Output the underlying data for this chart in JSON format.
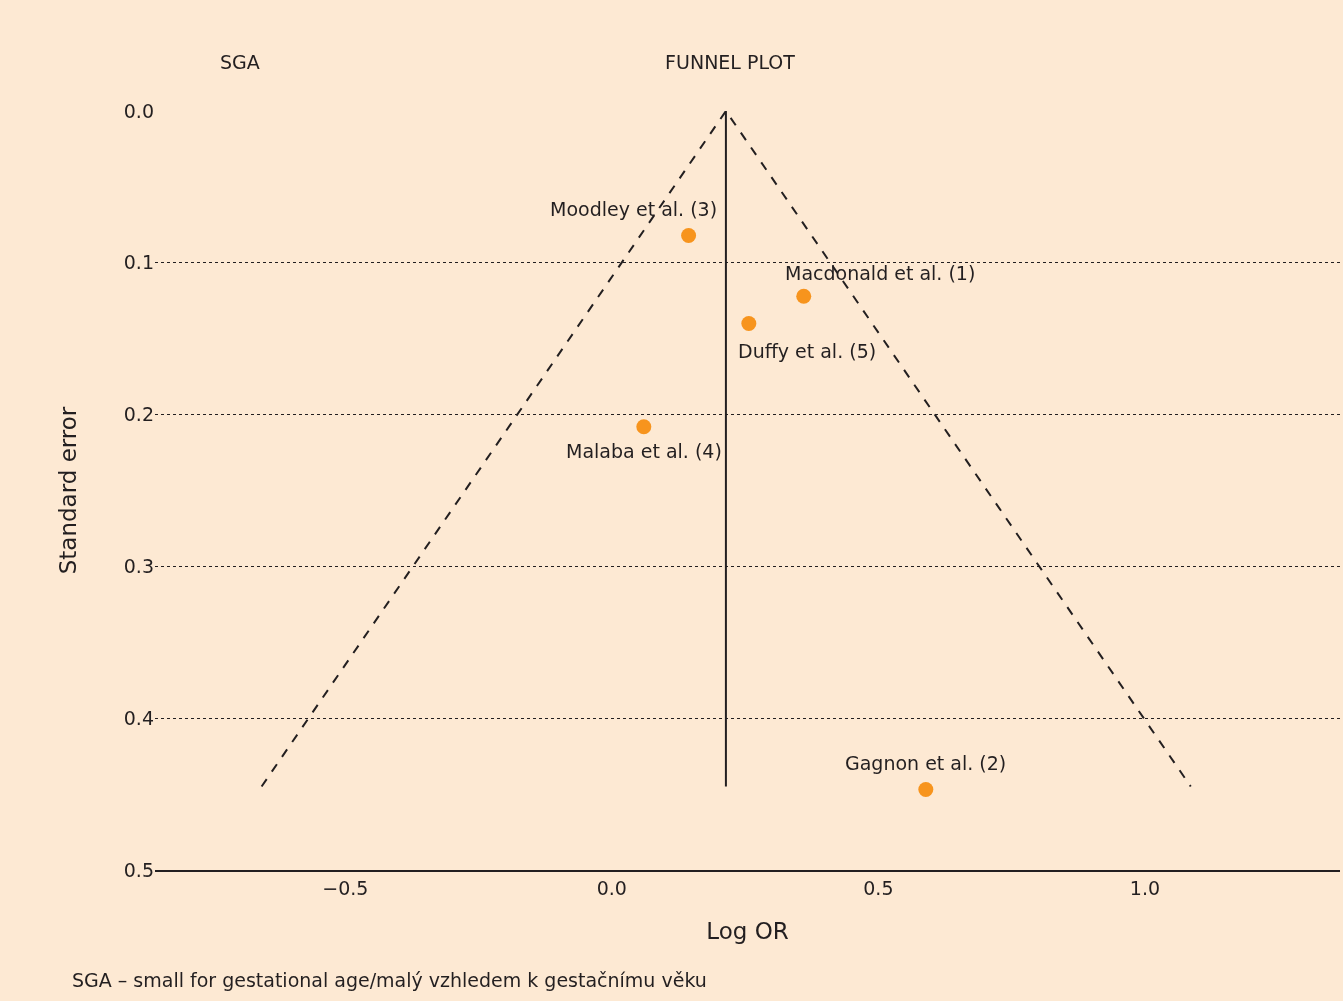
{
  "chart_data": {
    "type": "scatter",
    "title": "FUNNEL PLOT",
    "xlabel": "Log OR",
    "ylabel": "Standard error",
    "series": [
      {
        "color": "#f7941d",
        "x": [
          0.144,
          0.36,
          0.257,
          0.06,
          0.589
        ],
        "values": [
          0.082,
          0.122,
          0.14,
          0.208,
          0.447
        ],
        "marker": "circle"
      },
      {
        "type": "line",
        "color": "#231f20",
        "x": [
          -0.657,
          0.214,
          1.086
        ],
        "values": [
          0.445,
          0.0,
          0.445
        ],
        "line_style": "dashed",
        "marker": "none"
      },
      {
        "type": "line",
        "color": "#231f20",
        "x": [
          0.214,
          0.214
        ],
        "values": [
          0.0,
          0.445
        ],
        "line_style": "solid",
        "marker": "none"
      }
    ],
    "annotations": [
      {
        "text": "Moodley et al. (3)",
        "x": 0.144,
        "y": 0.082
      },
      {
        "text": "Macdonald et al. (1)",
        "x": 0.36,
        "y": 0.122
      },
      {
        "text": "Duffy et al. (5)",
        "x": 0.257,
        "y": 0.14
      },
      {
        "text": "Malaba et al. (4)",
        "x": 0.06,
        "y": 0.208
      },
      {
        "text": "Gagnon et al. (2)",
        "x": 0.589,
        "y": 0.447
      },
      "SGA",
      "SGA – small for gestational age/malý vzhledem k gestačnímu věku"
    ],
    "xlim": [
      -0.857,
      1.366
    ],
    "xticks": [
      {
        "value": -0.5,
        "label": "−0.5"
      },
      {
        "value": 0.0,
        "label": "0.0"
      },
      {
        "value": 0.5,
        "label": "0.5"
      },
      {
        "value": 1.0,
        "label": "1.0"
      }
    ],
    "ylim": [
      0.5,
      0.0
    ],
    "yticks": [
      {
        "value": 0.0,
        "label": "0.0"
      },
      {
        "value": 0.1,
        "label": "0.1"
      },
      {
        "value": 0.2,
        "label": "0.2"
      },
      {
        "value": 0.3,
        "label": "0.3"
      },
      {
        "value": 0.4,
        "label": "0.4"
      },
      {
        "value": 0.5,
        "label": "0.5"
      }
    ],
    "grid": "y"
  }
}
